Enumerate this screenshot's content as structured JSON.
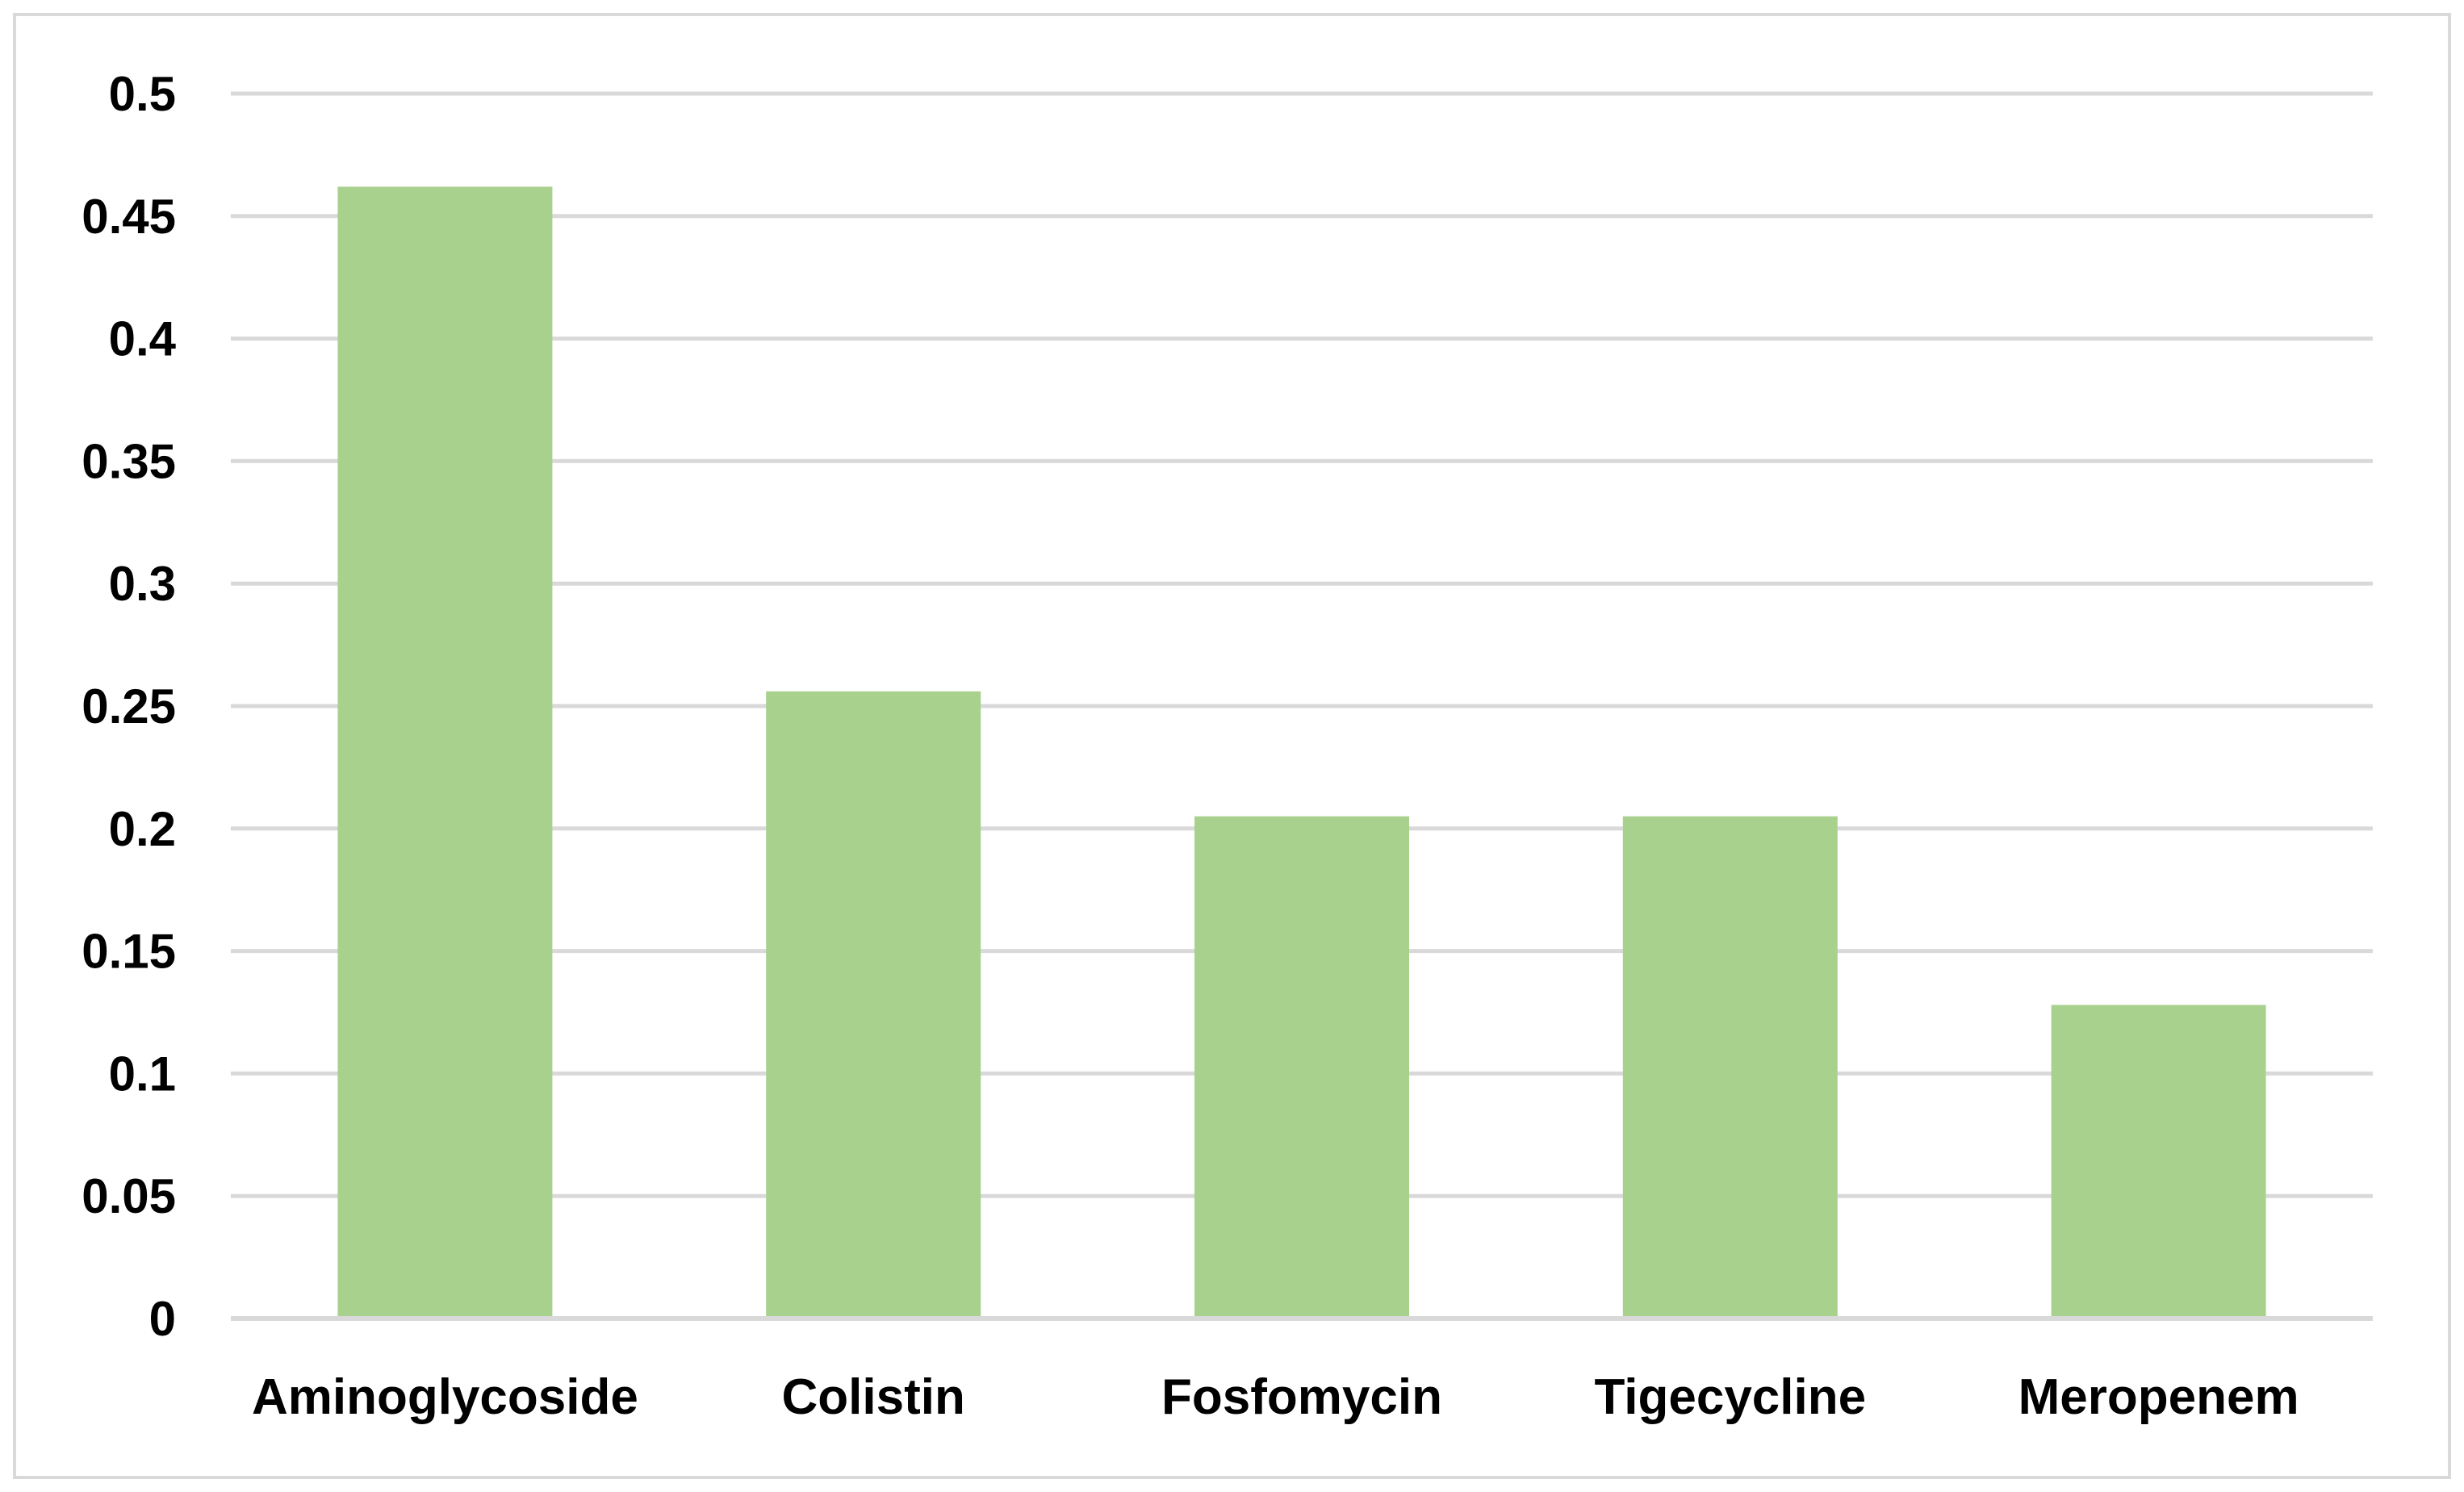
{
  "chart_data": {
    "type": "bar",
    "title": "",
    "xlabel": "",
    "ylabel": "",
    "categories": [
      "Aminoglycoside",
      "Colistin",
      "Fosfomycin",
      "Tigecycline",
      "Meropenem"
    ],
    "values": [
      0.462,
      0.256,
      0.205,
      0.205,
      0.128
    ],
    "ylim": [
      0,
      0.5
    ],
    "yticks": [
      0,
      0.05,
      0.1,
      0.15,
      0.2,
      0.25,
      0.3,
      0.35,
      0.4,
      0.45,
      0.5
    ],
    "ytick_labels": [
      "0",
      "0.05",
      "0.1",
      "0.15",
      "0.2",
      "0.25",
      "0.3",
      "0.35",
      "0.4",
      "0.45",
      "0.5"
    ],
    "grid": true,
    "legend": "none",
    "colors": {
      "bar": "#a9d18e",
      "grid": "#d9d9d9",
      "frame": "#d9d9d9",
      "text": "#000000"
    }
  }
}
